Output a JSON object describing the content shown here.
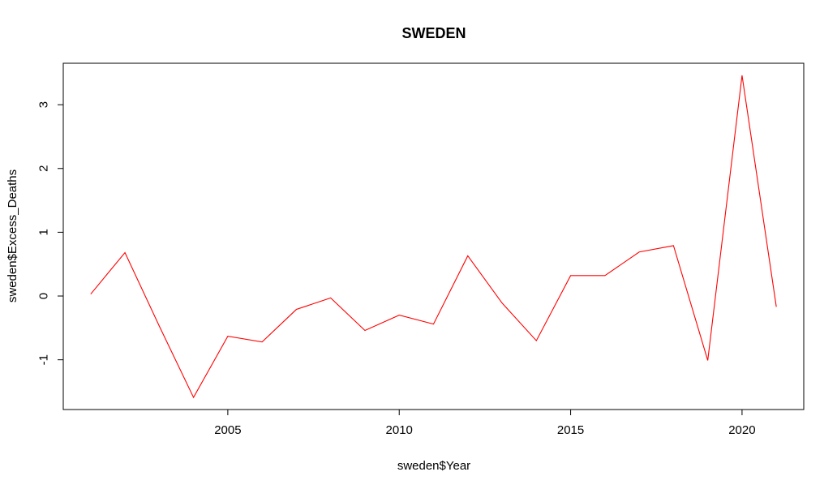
{
  "chart_data": {
    "type": "line",
    "title": "SWEDEN",
    "xlabel": "sweden$Year",
    "ylabel": "sweden$Excess_Deaths",
    "x": [
      2001,
      2002,
      2003,
      2004,
      2005,
      2006,
      2007,
      2008,
      2009,
      2010,
      2011,
      2012,
      2013,
      2014,
      2015,
      2016,
      2017,
      2018,
      2019,
      2020,
      2021
    ],
    "series": [
      {
        "color": "#ff0000",
        "values": [
          0.03,
          0.68,
          -0.47,
          -1.59,
          -0.63,
          -0.72,
          -0.21,
          -0.03,
          -0.54,
          -0.3,
          -0.44,
          0.63,
          -0.11,
          -0.7,
          0.32,
          0.32,
          0.69,
          0.79,
          -1.01,
          3.46,
          -0.17
        ]
      }
    ],
    "xlim": [
      2000.2,
      2021.8
    ],
    "ylim": [
      -1.78,
      3.65
    ],
    "xticks": [
      2005,
      2010,
      2015,
      2020
    ],
    "yticks": [
      -1,
      0,
      1,
      2,
      3
    ],
    "grid": false,
    "legend": "none"
  }
}
